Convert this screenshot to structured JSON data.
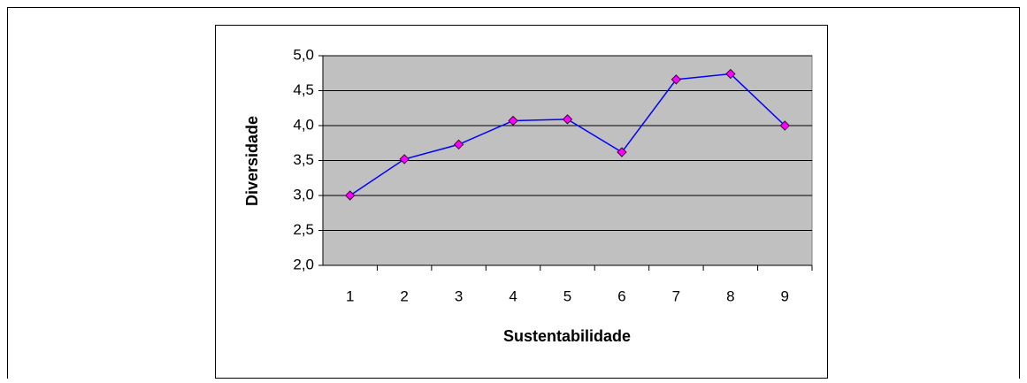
{
  "chart_data": {
    "type": "line",
    "x_label": "Sustentabilidade",
    "y_label": "Diversidade",
    "categories": [
      "1",
      "2",
      "3",
      "4",
      "5",
      "6",
      "7",
      "8",
      "9"
    ],
    "series": [
      {
        "name": "Diversidade",
        "color": "#0000ff",
        "marker_color": "#ff00ff",
        "values": [
          3.0,
          3.52,
          3.73,
          4.07,
          4.09,
          3.62,
          4.66,
          4.74,
          4.0
        ]
      }
    ],
    "ylim": [
      2.0,
      5.0
    ],
    "yticks": [
      {
        "value": 2.0,
        "label": "2,0"
      },
      {
        "value": 2.5,
        "label": "2,5"
      },
      {
        "value": 3.0,
        "label": "3,0"
      },
      {
        "value": 3.5,
        "label": "3,5"
      },
      {
        "value": 4.0,
        "label": "4,0"
      },
      {
        "value": 4.5,
        "label": "4,5"
      },
      {
        "value": 5.0,
        "label": "5,0"
      }
    ],
    "grid": true,
    "plot_background": "#c0c0c0"
  }
}
